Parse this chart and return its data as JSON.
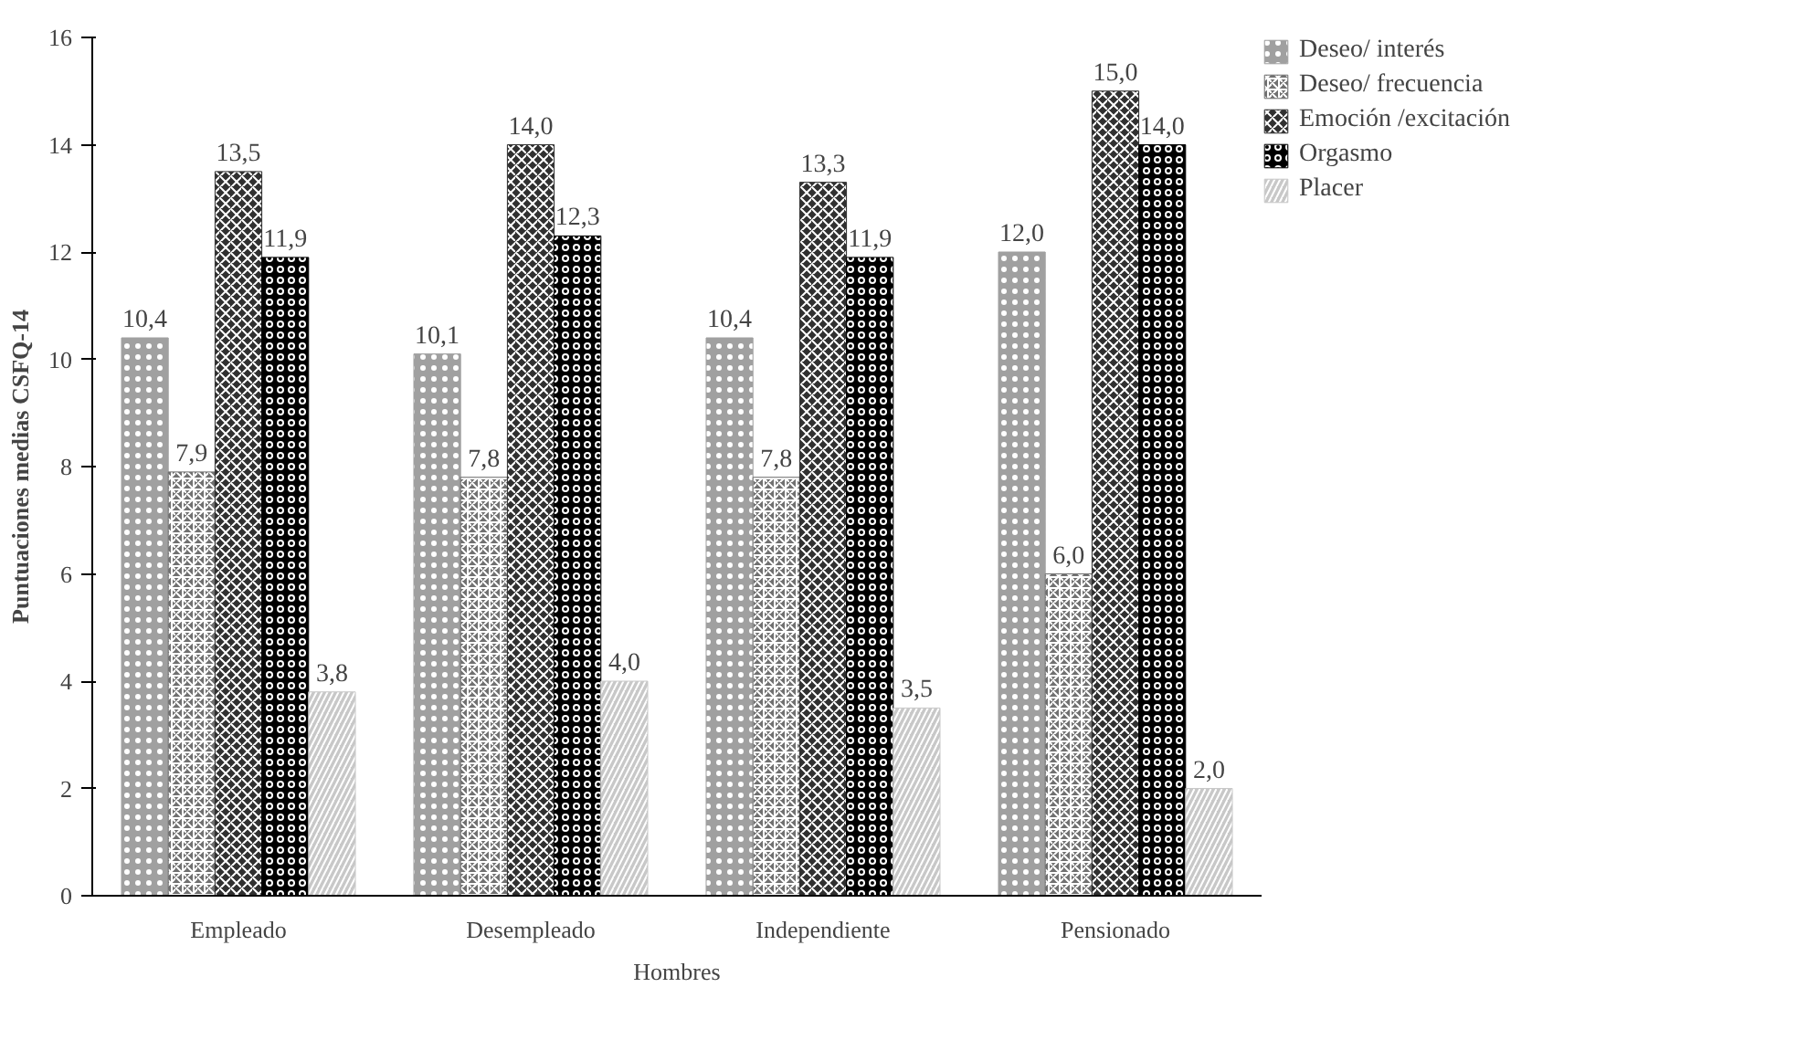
{
  "chart_data": {
    "type": "bar",
    "ylabel": "Puntuaciones medias CSFQ-14",
    "xlabel": "Hombres",
    "categories": [
      "Empleado",
      "Desempleado",
      "Independiente",
      "Pensionado"
    ],
    "series": [
      {
        "name": "Deseo/ interés",
        "color": "#a0a0a0",
        "values": [
          10.4,
          10.1,
          10.4,
          12.0
        ],
        "value_labels": [
          "10,4",
          "10,1",
          "10,4",
          "12,0"
        ]
      },
      {
        "name": "Deseo/ frecuencia",
        "color": "#707070",
        "values": [
          7.9,
          7.8,
          7.8,
          6.0
        ],
        "value_labels": [
          "7,9",
          "7,8",
          "7,8",
          "6,0"
        ]
      },
      {
        "name": "Emoción /excitación",
        "color": "#303030",
        "values": [
          13.5,
          14.0,
          13.3,
          15.0
        ],
        "value_labels": [
          "13,5",
          "14,0",
          "13,3",
          "15,0"
        ]
      },
      {
        "name": "Orgasmo",
        "color": "#000000",
        "values": [
          11.9,
          12.3,
          11.9,
          14.0
        ],
        "value_labels": [
          "11,9",
          "12,3",
          "11,9",
          "14,0"
        ]
      },
      {
        "name": "Placer",
        "color": "#c8c8c8",
        "values": [
          3.8,
          4.0,
          3.5,
          2.0
        ],
        "value_labels": [
          "3,8",
          "4,0",
          "3,5",
          "2,0"
        ]
      }
    ],
    "ylim": [
      0,
      16
    ],
    "yticks": [
      0,
      2,
      4,
      6,
      8,
      10,
      12,
      14,
      16
    ],
    "grid": false,
    "legend": "right"
  }
}
